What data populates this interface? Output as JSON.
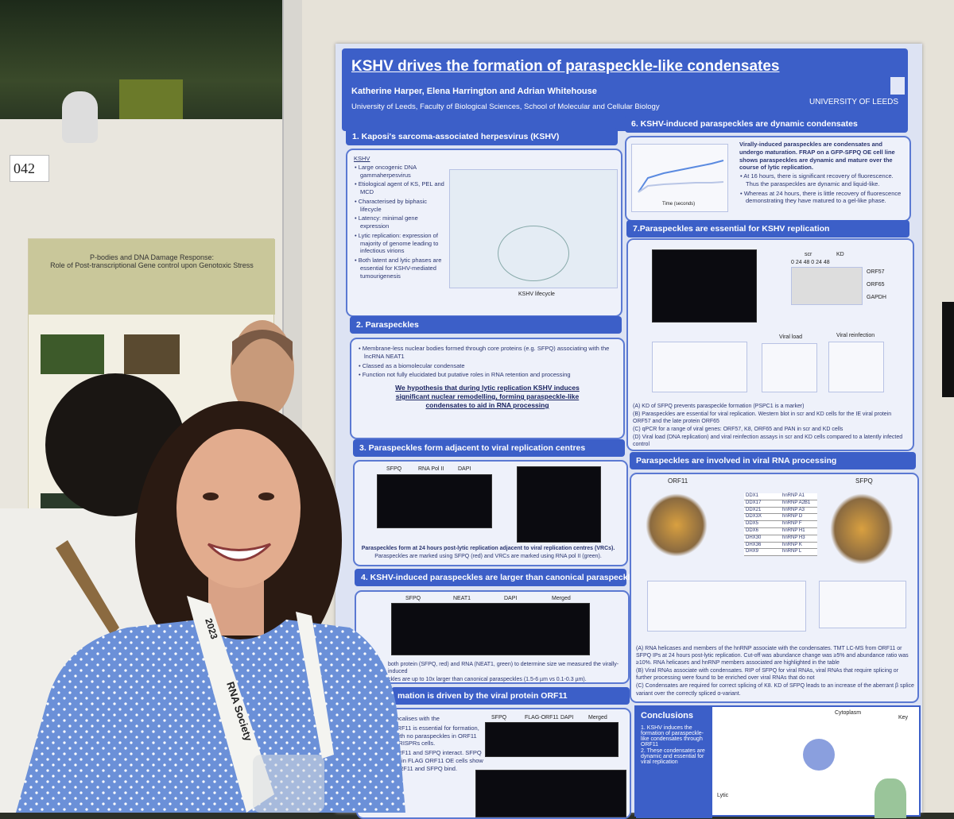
{
  "booth_number": "042",
  "side_poster": {
    "title": "P-bodies and DNA Damage Response:",
    "subtitle": "Role of Post-transcriptional Gene control upon Genotoxic Stress"
  },
  "poster": {
    "title": "KSHV drives the formation of paraspeckle-like condensates",
    "authors": "Katherine Harper, Elena Harrington and Adrian Whitehouse",
    "affiliation": "University of Leeds, Faculty of Biological Sciences, School of Molecular and Cellular Biology",
    "institution": "UNIVERSITY OF LEEDS",
    "sections": [
      {
        "heading": "1. Kaposi's sarcoma-associated herpesvirus (KSHV)",
        "label": "KSHV",
        "bullets": [
          "Large oncogenic DNA gammaherpesvirus",
          "Etiological agent of KS, PEL and MCD",
          "Characterised by biphasic lifecycle",
          "Latency: minimal gene expression",
          "Lytic replication: expression of majority of genome leading to infectious virions",
          "Both latent and lytic phases are essential for KSHV-mediated tumourigenesis"
        ],
        "caption": "KSHV lifecycle"
      },
      {
        "heading": "2. Paraspeckles",
        "bullets": [
          "Membrane-less nuclear bodies formed through core proteins (e.g. SFPQ) associating with the lncRNA NEAT1",
          "Classed as a biomolecular condensate",
          "Function not fully elucidated but putative roles in RNA retention and processing"
        ],
        "hypothesis": "We hypothesis that during lytic replication KSHV induces significant nuclear remodelling, forming paraspeckle-like condensates to aid in RNA processing"
      },
      {
        "heading": "3. Paraspeckles form adjacent to viral replication centres",
        "panels": [
          "SFPQ",
          "RNA Pol II",
          "DAPI"
        ],
        "caption": "Paraspeckles form at 24 hours post-lytic replication adjacent to viral replication centres (VRCs).",
        "note": "Paraspeckles are marked using SFPQ (red) and VRCs are marked using RNA pol II (green)."
      },
      {
        "heading": "4. KSHV-induced paraspeckles are larger than canonical paraspeckles",
        "panels": [
          "SFPQ",
          "NEAT1",
          "DAPI",
          "Merged"
        ],
        "text": [
          "both protein (SFPQ, red) and RNA (NEAT1, green) to determine size we measured the virally-induced",
          "ckles are up to 10x larger than canonical paraspeckles (1.5-6 µm vs 0.1-0.3 µm)."
        ]
      },
      {
        "heading": "mation is driven by the viral protein ORF11",
        "bullets": [
          "-localises with the",
          "ORF11 is essential for formation, with no paraspeckles in ORF11 CRISPRs cells.",
          "ORF11 and SFPQ interact. SFPQ IP in FLAG ORF11 OE cells show ORF11 and SFPQ bind."
        ],
        "panels": [
          "SFPQ",
          "FLAG-ORF11",
          "DAPI",
          "Merged"
        ]
      },
      {
        "heading": "6. KSHV-induced paraspeckles are dynamic condensates",
        "text": "Virally-induced paraspeckles are condensates and undergo maturation. FRAP on a GFP-SFPQ OE cell line shows paraspeckles are dynamic and mature over the course of lytic replication.",
        "bullets": [
          "At 16 hours, there is significant recovery of fluorescence. Thus the paraspeckles are dynamic and liquid-like.",
          "Whereas at 24 hours, there is little recovery of fluorescence demonstrating they have matured to a gel-like phase."
        ],
        "x_label": "Time (seconds)"
      },
      {
        "heading": "7.Paraspeckles are essential for KSHV replication",
        "blot": {
          "groups": [
            "scr",
            "KD"
          ],
          "times": "0 24 48 0 24 48",
          "bands": [
            "ORF57",
            "ORF65",
            "GAPDH"
          ]
        },
        "charts": [
          "Viral load",
          "Viral reinfection"
        ],
        "captions": [
          "(A) KD of SFPQ prevents paraspeckle formation (PSPC1 is a marker)",
          "(B) Paraspeckles are essential for viral replication. Western blot in scr and KD cells for the IE viral protein ORF57 and the late protein ORF65",
          "(C) qPCR for a range of viral genes: ORF57, K8, ORF65 and PAN in scr and KD cells",
          "(D) Viral load (DNA replication) and viral reinfection assays in scr and KD cells compared to a latently infected control"
        ]
      },
      {
        "heading": "Paraspeckles are involved in viral RNA processing",
        "networks": [
          "ORF11",
          "SFPQ"
        ],
        "table": [
          [
            "DDX1",
            "hnRNP A1"
          ],
          [
            "DDX17",
            "hnRNP A2B1"
          ],
          [
            "DDX21",
            "hnRNP A3"
          ],
          [
            "DDX3X",
            "hnRNP D"
          ],
          [
            "DDX5",
            "hnRNP F"
          ],
          [
            "DDX6",
            "hnRNP H1"
          ],
          [
            "DHX30",
            "hnRNP H3"
          ],
          [
            "DHX36",
            "hnRNP K"
          ],
          [
            "DHX9",
            "hnRNP L"
          ]
        ],
        "captions": [
          "(A) RNA helicases and members of the hnRNP associate with the condensates. TMT LC-MS from ORF11 or SFPQ IPs at 24 hours post-lytic replication. Cut-off was abundance change was ≥5% and abundance ratio was ≥10%. RNA helicases and hnRNP members associated are highlighted in the table",
          "(B) Viral RNAs associate with condensates. RIP of SFPQ for viral RNAs, viral RNAs that require splicing or further processing were found to be enriched over viral RNAs that do not",
          "(C) Condensates are required for correct splicing of K8. KD of SFPQ leads to an increase of the aberrant β splice variant over the correctly spliced α-variant."
        ]
      },
      {
        "heading": "Conclusions",
        "bullets": [
          "1. KSHV induces the formation of paraspeckle-like condensates through ORF11",
          "2. These condensates are dynamic and essential for viral replication"
        ],
        "labels": [
          "Cytoplasm",
          "Key",
          "Lytic"
        ]
      }
    ]
  },
  "lanyard": {
    "society": "RNA Society",
    "year": "2023"
  }
}
